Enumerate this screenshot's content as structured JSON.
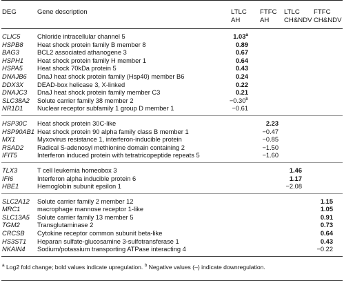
{
  "header": {
    "deg": "DEG",
    "gene_description": "Gene description",
    "col_ltlc_ah_1": "LTLC",
    "col_ltlc_ah_2": "AH",
    "col_ftfc_ah_1": "FTFC",
    "col_ftfc_ah_2": "AH",
    "col_ltlc_chndv_1": "LTLC",
    "col_ltlc_chndv_2": "CH&NDV",
    "col_ftfc_chndv_1": "FTFC",
    "col_ftfc_chndv_2": "CH&NDV"
  },
  "groups": [
    {
      "rows": [
        {
          "deg": "CLIC5",
          "desc": "Chloride intracellular channel 5",
          "col": 0,
          "value": "1.03",
          "bold": true,
          "sup": "a"
        },
        {
          "deg": "HSPB8",
          "desc": "Heat shock protein family B member 8",
          "col": 0,
          "value": "0.89",
          "bold": true
        },
        {
          "deg": "BAG3",
          "desc": "BCL2 associated athanogene 3",
          "col": 0,
          "value": "0.67",
          "bold": true
        },
        {
          "deg": "HSPH1",
          "desc": "Heat shock protein family H member 1",
          "col": 0,
          "value": "0.64",
          "bold": true
        },
        {
          "deg": "HSPA5",
          "desc": "Heat shock 70kDa protein 5",
          "col": 0,
          "value": "0.43",
          "bold": true
        },
        {
          "deg": "DNAJB6",
          "desc": "DnaJ heat shock protein family (Hsp40) member B6",
          "col": 0,
          "value": "0.24",
          "bold": true
        },
        {
          "deg": "DDX3X",
          "desc": "DEAD-box helicase 3, X-linked",
          "col": 0,
          "value": "0.22",
          "bold": true
        },
        {
          "deg": "DNAJC3",
          "desc": "DnaJ heat shock protein family member C3",
          "col": 0,
          "value": "0.21",
          "bold": true
        },
        {
          "deg": "SLC38A2",
          "desc": "Solute carrier family 38 member 2",
          "col": 0,
          "value": "−0.30",
          "bold": false,
          "sup": "b"
        },
        {
          "deg": "NR1D1",
          "desc": "Nuclear receptor subfamily 1 group D member 1",
          "col": 0,
          "value": "−0.61",
          "bold": false
        }
      ]
    },
    {
      "rows": [
        {
          "deg": "HSP30C",
          "desc": "Heat shock protein 30C-like",
          "col": 1,
          "value": "2.23",
          "bold": true
        },
        {
          "deg": "HSP90AB1",
          "desc": "Heat shock protein 90 alpha family class B member 1",
          "col": 1,
          "value": "−0.47",
          "bold": false
        },
        {
          "deg": "MX1",
          "desc": "Myxovirus resistance 1, interferon-inducible protein",
          "col": 1,
          "value": "−0.85",
          "bold": false
        },
        {
          "deg": "RSAD2",
          "desc": "Radical S-adenosyl methionine domain containing 2",
          "col": 1,
          "value": "−1.50",
          "bold": false
        },
        {
          "deg": "IFIT5",
          "desc": "Interferon induced protein with tetratricopeptide repeats 5",
          "col": 1,
          "value": "−1.60",
          "bold": false
        }
      ]
    },
    {
      "rows": [
        {
          "deg": "TLX3",
          "desc": "T cell leukemia homeobox 3",
          "col": 2,
          "value": "1.46",
          "bold": true
        },
        {
          "deg": "IFI6",
          "desc": "Interferon alpha inducible protein 6",
          "col": 2,
          "value": "1.17",
          "bold": true
        },
        {
          "deg": "HBE1",
          "desc": "Hemoglobin subunit epsilon 1",
          "col": 2,
          "value": "−2.08",
          "bold": false
        }
      ]
    },
    {
      "rows": [
        {
          "deg": "SLC2A12",
          "desc": "Solute carrier family 2 member 12",
          "col": 3,
          "value": "1.15",
          "bold": true
        },
        {
          "deg": "MRC1",
          "desc": "macrophage mannose receptor 1-like",
          "col": 3,
          "value": "1.05",
          "bold": true
        },
        {
          "deg": "SLC13A5",
          "desc": "Solute carrier family 13 member 5",
          "col": 3,
          "value": "0.91",
          "bold": true
        },
        {
          "deg": "TGM2",
          "desc": "Transglutaminase 2",
          "col": 3,
          "value": "0.73",
          "bold": true
        },
        {
          "deg": "CRCSB",
          "desc": "Cytokine receptor common subunit beta-like",
          "col": 3,
          "value": "0.64",
          "bold": true
        },
        {
          "deg": "HS3ST1",
          "desc": "Heparan sulfate-glucosamine 3-sulfotransferase 1",
          "col": 3,
          "value": "0.43",
          "bold": true
        },
        {
          "deg": "NKAIN4",
          "desc": "Sodium/potassium transporting ATPase interacting 4",
          "col": 3,
          "value": "−0.22",
          "bold": false
        }
      ]
    }
  ],
  "footnote": {
    "mark_a": "a",
    "text_a": " Log2 fold change; bold values indicate upregulation. ",
    "mark_b": "b",
    "text_b": " Negative values (–) indicate downregulation."
  }
}
